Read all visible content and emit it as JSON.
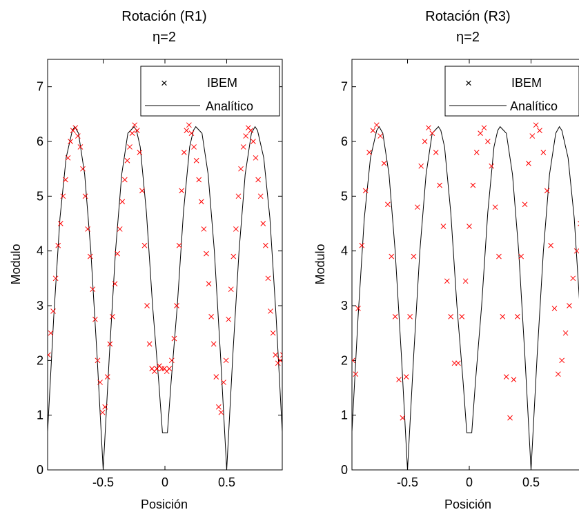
{
  "chart_data": [
    {
      "type": "line",
      "title": "Rotación (R1)",
      "subtitle": "η=2",
      "xlabel": "Posición",
      "ylabel": "Modulo",
      "xlim": [
        -0.95,
        0.95
      ],
      "ylim": [
        0,
        7.5
      ],
      "xticks": [
        -0.5,
        0,
        0.5
      ],
      "xtick_labels": [
        "-0.5",
        "0",
        "0.5"
      ],
      "yticks": [
        0,
        1,
        2,
        3,
        4,
        5,
        6,
        7
      ],
      "ytick_labels": [
        "0",
        "1",
        "2",
        "3",
        "4",
        "5",
        "6",
        "7"
      ],
      "grid": false,
      "legend_position": "top-right",
      "series": [
        {
          "name": "IBEM",
          "kind": "markers",
          "color": "#ff0000",
          "x": [
            -0.945,
            -0.925,
            -0.905,
            -0.885,
            -0.865,
            -0.845,
            -0.825,
            -0.805,
            -0.785,
            -0.765,
            -0.745,
            -0.725,
            -0.705,
            -0.685,
            -0.665,
            -0.645,
            -0.625,
            -0.605,
            -0.585,
            -0.565,
            -0.545,
            -0.525,
            -0.505,
            -0.485,
            -0.465,
            -0.445,
            -0.425,
            -0.405,
            -0.385,
            -0.365,
            -0.345,
            -0.325,
            -0.305,
            -0.285,
            -0.265,
            -0.245,
            -0.225,
            -0.205,
            -0.185,
            -0.165,
            -0.145,
            -0.125,
            -0.105,
            -0.085,
            -0.065,
            -0.045,
            -0.025,
            -0.005,
            0.015,
            0.035,
            0.055,
            0.075,
            0.095,
            0.115,
            0.135,
            0.155,
            0.175,
            0.195,
            0.215,
            0.235,
            0.255,
            0.275,
            0.295,
            0.315,
            0.335,
            0.355,
            0.375,
            0.395,
            0.415,
            0.435,
            0.455,
            0.475,
            0.495,
            0.515,
            0.535,
            0.555,
            0.575,
            0.595,
            0.615,
            0.635,
            0.655,
            0.675,
            0.695,
            0.715,
            0.735,
            0.755,
            0.775,
            0.795,
            0.815,
            0.835,
            0.855,
            0.875,
            0.895,
            0.915,
            0.935,
            0.955
          ],
          "y": [
            2.1,
            2.5,
            2.9,
            3.5,
            4.1,
            4.5,
            5.0,
            5.3,
            5.7,
            6.0,
            6.2,
            6.25,
            6.1,
            5.9,
            5.5,
            5.0,
            4.4,
            3.9,
            3.3,
            2.75,
            2.0,
            1.6,
            1.05,
            1.15,
            1.7,
            2.3,
            2.8,
            3.4,
            3.95,
            4.4,
            4.9,
            5.3,
            5.65,
            5.9,
            6.15,
            6.3,
            6.2,
            5.8,
            5.1,
            4.1,
            3.0,
            2.3,
            1.85,
            1.8,
            1.85,
            1.9,
            1.85,
            1.85,
            1.8,
            1.85,
            2.0,
            2.4,
            3.0,
            4.1,
            5.1,
            5.8,
            6.2,
            6.3,
            6.15,
            5.9,
            5.65,
            5.3,
            4.9,
            4.4,
            3.95,
            3.4,
            2.8,
            2.3,
            1.7,
            1.15,
            1.05,
            1.6,
            2.0,
            2.75,
            3.3,
            3.9,
            4.4,
            5.0,
            5.5,
            5.9,
            6.1,
            6.25,
            6.2,
            6.0,
            5.7,
            5.3,
            5.0,
            4.5,
            4.1,
            3.5,
            2.9,
            2.5,
            2.1,
            1.95,
            2.0,
            2.1
          ]
        },
        {
          "name": "Analítico",
          "kind": "line",
          "color": "#000000",
          "x": [
            -0.95,
            -0.9,
            -0.85,
            -0.8,
            -0.75,
            -0.73,
            -0.7,
            -0.65,
            -0.6,
            -0.55,
            -0.5,
            -0.45,
            -0.4,
            -0.35,
            -0.3,
            -0.25,
            -0.23,
            -0.2,
            -0.15,
            -0.1,
            -0.05,
            -0.02,
            0.02,
            0.05,
            0.1,
            0.15,
            0.2,
            0.23,
            0.25,
            0.3,
            0.35,
            0.4,
            0.45,
            0.5,
            0.55,
            0.6,
            0.65,
            0.7,
            0.73,
            0.75,
            0.8,
            0.85,
            0.9,
            0.95
          ],
          "y": [
            0.7,
            2.8,
            4.6,
            5.7,
            6.2,
            6.27,
            6.15,
            5.4,
            4.0,
            2.1,
            0.0,
            2.1,
            4.0,
            5.4,
            6.15,
            6.27,
            6.2,
            5.9,
            4.7,
            3.0,
            1.6,
            0.68,
            0.68,
            1.6,
            3.0,
            4.7,
            5.9,
            6.2,
            6.27,
            6.15,
            5.4,
            4.0,
            2.1,
            0.0,
            2.1,
            4.0,
            5.4,
            6.15,
            6.27,
            6.2,
            5.7,
            4.6,
            2.8,
            0.7
          ]
        }
      ]
    },
    {
      "type": "line",
      "title": "Rotación (R3)",
      "subtitle": "η=2",
      "xlabel": "Posición",
      "ylabel": "Modulo",
      "xlim": [
        -0.95,
        0.95
      ],
      "ylim": [
        0,
        7.5
      ],
      "xticks": [
        -0.5,
        0,
        0.5
      ],
      "xtick_labels": [
        "-0.5",
        "0",
        "0.5"
      ],
      "yticks": [
        0,
        1,
        2,
        3,
        4,
        5,
        6,
        7
      ],
      "ytick_labels": [
        "0",
        "1",
        "2",
        "3",
        "4",
        "5",
        "6",
        "7"
      ],
      "grid": false,
      "legend_position": "top-right",
      "series": [
        {
          "name": "IBEM",
          "kind": "markers",
          "color": "#ff0000",
          "x": [
            -0.945,
            -0.92,
            -0.9,
            -0.87,
            -0.84,
            -0.81,
            -0.78,
            -0.75,
            -0.72,
            -0.69,
            -0.66,
            -0.63,
            -0.6,
            -0.57,
            -0.54,
            -0.51,
            -0.48,
            -0.45,
            -0.42,
            -0.39,
            -0.36,
            -0.33,
            -0.3,
            -0.27,
            -0.24,
            -0.21,
            -0.18,
            -0.15,
            -0.12,
            -0.09,
            -0.06,
            -0.03,
            0.0,
            0.03,
            0.06,
            0.09,
            0.12,
            0.15,
            0.18,
            0.21,
            0.24,
            0.27,
            0.3,
            0.33,
            0.36,
            0.39,
            0.42,
            0.45,
            0.48,
            0.51,
            0.54,
            0.57,
            0.6,
            0.63,
            0.66,
            0.69,
            0.72,
            0.75,
            0.78,
            0.81,
            0.84,
            0.87,
            0.9,
            0.93
          ],
          "y": [
            2.0,
            1.75,
            2.95,
            4.1,
            5.1,
            5.8,
            6.2,
            6.3,
            6.1,
            5.6,
            4.85,
            3.9,
            2.8,
            1.65,
            0.95,
            1.7,
            2.8,
            3.9,
            4.8,
            5.55,
            6.0,
            6.25,
            6.15,
            5.8,
            5.2,
            4.45,
            3.45,
            2.8,
            1.95,
            1.95,
            2.8,
            3.45,
            4.45,
            5.2,
            5.8,
            6.15,
            6.25,
            6.0,
            5.55,
            4.8,
            3.9,
            2.8,
            1.7,
            0.95,
            1.65,
            2.8,
            3.9,
            4.85,
            5.6,
            6.1,
            6.3,
            6.2,
            5.8,
            5.1,
            4.1,
            2.95,
            1.75,
            2.0,
            2.5,
            3.0,
            3.5,
            4.0,
            4.5,
            5.0
          ]
        },
        {
          "name": "Analítico",
          "kind": "line",
          "color": "#000000",
          "x": [
            -0.95,
            -0.9,
            -0.85,
            -0.8,
            -0.75,
            -0.73,
            -0.7,
            -0.65,
            -0.6,
            -0.55,
            -0.5,
            -0.45,
            -0.4,
            -0.35,
            -0.3,
            -0.25,
            -0.23,
            -0.2,
            -0.15,
            -0.1,
            -0.05,
            -0.02,
            0.02,
            0.05,
            0.1,
            0.15,
            0.2,
            0.23,
            0.25,
            0.3,
            0.35,
            0.4,
            0.45,
            0.5,
            0.55,
            0.6,
            0.65,
            0.7,
            0.73,
            0.75,
            0.8,
            0.85,
            0.9,
            0.95
          ],
          "y": [
            0.7,
            2.8,
            4.6,
            5.7,
            6.2,
            6.27,
            6.15,
            5.4,
            4.0,
            2.1,
            0.0,
            2.1,
            4.0,
            5.4,
            6.15,
            6.27,
            6.2,
            5.9,
            4.7,
            3.0,
            1.6,
            0.68,
            0.68,
            1.6,
            3.0,
            4.7,
            5.9,
            6.2,
            6.27,
            6.15,
            5.4,
            4.0,
            2.1,
            0.0,
            2.1,
            4.0,
            5.4,
            6.15,
            6.27,
            6.2,
            5.7,
            4.6,
            2.8,
            0.7
          ]
        }
      ]
    }
  ]
}
